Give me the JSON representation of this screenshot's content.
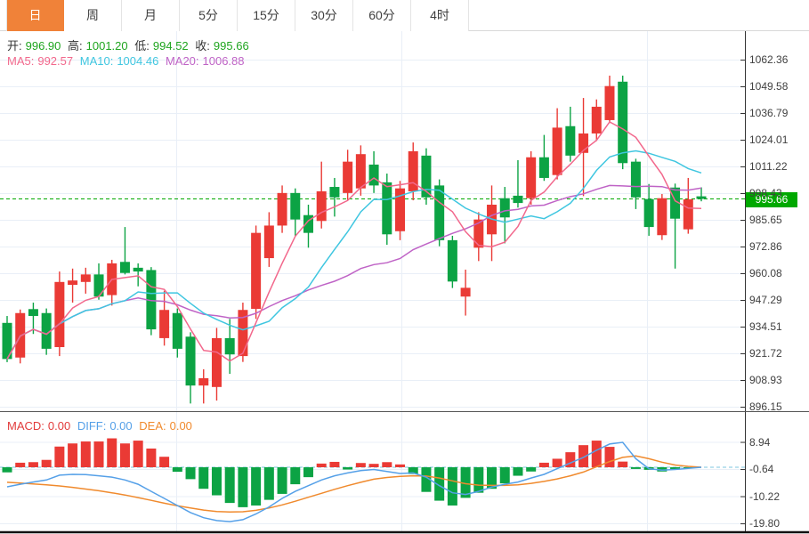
{
  "tabs": {
    "items": [
      {
        "label": "日",
        "name": "tab-day",
        "active": true
      },
      {
        "label": "周",
        "name": "tab-week",
        "active": false
      },
      {
        "label": "月",
        "name": "tab-month",
        "active": false
      },
      {
        "label": "5分",
        "name": "tab-5min",
        "active": false
      },
      {
        "label": "15分",
        "name": "tab-15min",
        "active": false
      },
      {
        "label": "30分",
        "name": "tab-30min",
        "active": false
      },
      {
        "label": "60分",
        "name": "tab-60min",
        "active": false
      },
      {
        "label": "4时",
        "name": "tab-4hour",
        "active": false
      }
    ]
  },
  "ohlc_header": {
    "open_label": "开:",
    "open": "996.90",
    "high_label": "高:",
    "high": "1001.20",
    "low_label": "低:",
    "low": "994.52",
    "close_label": "收:",
    "close": "995.66"
  },
  "ma_header": {
    "ma5_label": "MA5:",
    "ma5": "992.57",
    "ma10_label": "MA10:",
    "ma10": "1004.46",
    "ma20_label": "MA20:",
    "ma20": "1006.88"
  },
  "price_axis_labels": [
    "1062.36",
    "1049.58",
    "1036.79",
    "1024.01",
    "1011.22",
    "998.43",
    "985.65",
    "972.86",
    "960.08",
    "947.29",
    "934.51",
    "921.72",
    "908.93",
    "896.15"
  ],
  "price_badge": "995.66",
  "macd_header": {
    "macd_label": "MACD:",
    "macd": "0.00",
    "diff_label": "DIFF:",
    "diff": "0.00",
    "dea_label": "DEA:",
    "dea": "0.00"
  },
  "macd_axis_labels": [
    "8.94",
    "-0.64",
    "-10.22",
    "-19.80"
  ],
  "colors": {
    "up": "#ea3a35",
    "down": "#0ca344",
    "badge": "#00a800",
    "price_dash": "#00a800",
    "macd_zero_dash": "#a8d8ea",
    "ma5": "#f2688c",
    "ma10": "#3fc6e0",
    "ma20": "#bf63c6",
    "diff_line": "#55a0e8",
    "dea_line": "#f08a2d",
    "grid": "#e9eff7",
    "axis_line": "#333333",
    "tab_active_bg": "#f08239",
    "macd_label": "#e23b3b",
    "ohlc_value": "#1fa51f"
  },
  "chart_data": {
    "type": "candlestick",
    "title": "",
    "current_price": 995.66,
    "price_ticks": [
      1062.36,
      1049.58,
      1036.79,
      1024.01,
      1011.22,
      998.43,
      985.65,
      972.86,
      960.08,
      947.29,
      934.51,
      921.72,
      908.93,
      896.15
    ],
    "ylim": [
      889.2,
      1077.0
    ],
    "ma_windows": [
      5,
      10,
      20
    ],
    "candles": [
      [
        936.3,
        939.6,
        917.5,
        919.0
      ],
      [
        919.7,
        942.7,
        916.9,
        941.0
      ],
      [
        942.9,
        946.0,
        931.0,
        939.6
      ],
      [
        941.0,
        943.2,
        921.0,
        923.9
      ],
      [
        924.7,
        960.9,
        920.4,
        955.9
      ],
      [
        954.5,
        962.3,
        946.0,
        956.6
      ],
      [
        955.9,
        962.7,
        950.3,
        959.5
      ],
      [
        959.5,
        964.8,
        947.4,
        948.9
      ],
      [
        949.6,
        966.5,
        944.6,
        964.8
      ],
      [
        965.5,
        982.2,
        959.5,
        960.2
      ],
      [
        962.7,
        964.8,
        953.8,
        960.9
      ],
      [
        961.6,
        963.0,
        930.4,
        933.2
      ],
      [
        929.0,
        951.7,
        925.4,
        942.5
      ],
      [
        941.0,
        943.2,
        919.7,
        923.9
      ],
      [
        929.7,
        931.8,
        897.7,
        906.3
      ],
      [
        906.3,
        914.1,
        897.7,
        909.8
      ],
      [
        905.6,
        933.9,
        899.1,
        929.0
      ],
      [
        929.0,
        938.2,
        911.9,
        921.2
      ],
      [
        920.4,
        946.0,
        917.6,
        942.5
      ],
      [
        943.0,
        982.9,
        938.2,
        979.4
      ],
      [
        967.3,
        989.3,
        963.1,
        982.9
      ],
      [
        982.9,
        1002.1,
        979.4,
        998.5
      ],
      [
        998.5,
        1000.7,
        978.0,
        985.8
      ],
      [
        987.9,
        992.9,
        972.3,
        979.4
      ],
      [
        985.1,
        1013.5,
        981.5,
        999.3
      ],
      [
        1001.4,
        1005.7,
        987.2,
        996.4
      ],
      [
        998.5,
        1019.2,
        995.0,
        1013.5
      ],
      [
        1000.7,
        1021.3,
        997.2,
        1017.1
      ],
      [
        1012.1,
        1018.5,
        998.5,
        1002.1
      ],
      [
        1003.6,
        1007.8,
        973.7,
        978.7
      ],
      [
        980.2,
        1004.3,
        975.9,
        1000.7
      ],
      [
        999.3,
        1022.7,
        995.0,
        1018.5
      ],
      [
        1016.4,
        1019.9,
        992.9,
        996.4
      ],
      [
        1002.1,
        1005.0,
        973.0,
        975.9
      ],
      [
        975.9,
        978.0,
        953.0,
        956.1
      ],
      [
        948.9,
        961.8,
        939.8,
        953.1
      ],
      [
        972.3,
        989.3,
        965.9,
        985.8
      ],
      [
        978.7,
        1002.1,
        965.9,
        992.9
      ],
      [
        996.0,
        1001.4,
        974.4,
        986.8
      ],
      [
        997.2,
        1014.2,
        991.5,
        993.7
      ],
      [
        996.0,
        1018.5,
        992.9,
        1015.6
      ],
      [
        1015.6,
        1026.3,
        1004.3,
        1005.7
      ],
      [
        1007.1,
        1039.1,
        1005.0,
        1029.8
      ],
      [
        1030.5,
        1039.8,
        1013.5,
        1016.4
      ],
      [
        1017.7,
        1044.0,
        997.0,
        1027.0
      ],
      [
        1027.0,
        1043.3,
        1023.4,
        1039.8
      ],
      [
        1033.4,
        1054.7,
        1032.0,
        1049.7
      ],
      [
        1051.8,
        1054.7,
        1009.9,
        1012.8
      ],
      [
        1013.5,
        1014.9,
        990.8,
        996.4
      ],
      [
        995.6,
        1002.8,
        978.0,
        982.2
      ],
      [
        978.3,
        998.0,
        976.0,
        996.0
      ],
      [
        1001.1,
        1003.0,
        962.3,
        986.2
      ],
      [
        981.1,
        1005.7,
        979.0,
        995.5
      ],
      [
        996.9,
        1001.2,
        994.52,
        995.66
      ]
    ],
    "macd": {
      "ticks": [
        8.94,
        -0.64,
        -10.22,
        -19.8
      ],
      "ylim": [
        -22.5,
        11.8
      ],
      "hist": [
        -1.8,
        1.6,
        1.8,
        2.6,
        7.3,
        8.4,
        9.1,
        9.1,
        10.2,
        8.4,
        9.4,
        6.6,
        3.7,
        -1.6,
        -4.2,
        -7.6,
        -9.9,
        -12.6,
        -14.1,
        -13.5,
        -11.5,
        -9.4,
        -6.0,
        -3.5,
        1.3,
        1.9,
        -0.8,
        1.5,
        1.2,
        1.8,
        1.0,
        -2.4,
        -8.7,
        -11.8,
        -13.5,
        -10.8,
        -9.0,
        -7.6,
        -5.7,
        -3.0,
        -1.5,
        1.6,
        3.0,
        5.3,
        7.8,
        9.4,
        7.2,
        2.0,
        -0.6,
        -0.9,
        -1.5,
        -0.8,
        -0.4,
        0.0
      ],
      "diff": [
        -6.9,
        -6.0,
        -5.2,
        -4.5,
        -2.8,
        -2.5,
        -2.6,
        -3.0,
        -3.5,
        -4.5,
        -6.0,
        -8.5,
        -11.0,
        -13.5,
        -16.0,
        -17.8,
        -18.8,
        -19.2,
        -18.5,
        -16.5,
        -14.0,
        -11.0,
        -8.5,
        -6.5,
        -4.5,
        -3.0,
        -2.0,
        -1.2,
        -0.8,
        -1.5,
        -2.2,
        -2.0,
        -3.5,
        -6.5,
        -9.0,
        -9.6,
        -8.5,
        -7.0,
        -6.0,
        -5.2,
        -3.8,
        -2.5,
        -0.5,
        1.5,
        3.5,
        6.0,
        8.2,
        8.8,
        3.0,
        -0.5,
        -1.0,
        -0.8,
        -0.4,
        0.0
      ],
      "dea": [
        -5.3,
        -5.6,
        -5.9,
        -6.2,
        -6.6,
        -7.1,
        -7.7,
        -8.3,
        -9.0,
        -9.8,
        -10.7,
        -11.7,
        -12.7,
        -13.6,
        -14.4,
        -15.1,
        -15.6,
        -15.8,
        -15.7,
        -15.2,
        -14.4,
        -13.3,
        -12.0,
        -10.6,
        -9.2,
        -7.8,
        -6.5,
        -5.3,
        -4.2,
        -3.6,
        -3.2,
        -3.0,
        -3.1,
        -3.8,
        -4.8,
        -5.8,
        -6.3,
        -6.4,
        -6.4,
        -6.2,
        -5.7,
        -5.0,
        -4.1,
        -3.0,
        -1.7,
        0.2,
        2.0,
        3.5,
        4.0,
        3.0,
        1.8,
        0.8,
        0.3,
        0.0
      ]
    }
  }
}
